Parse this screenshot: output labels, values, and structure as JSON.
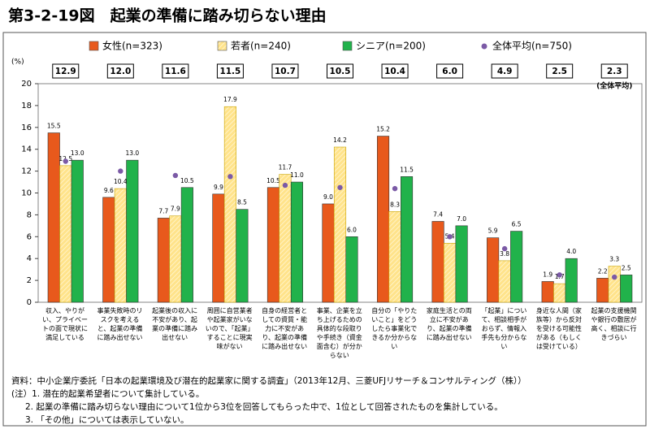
{
  "chart_data": {
    "type": "bar",
    "title": "第3-2-19図　起業の準備に踏み切らない理由",
    "y_unit": "(%)",
    "categories": [
      "収入、やりがい、プライベートの面で現状に満足している",
      "事業失敗時のリスクを考えると、起業の準備に踏み出せない",
      "起業後の収入に不安があり、起業の準備に踏み出せない",
      "周囲に自営業者や起業家がいないので、「起業」することに現実味がない",
      "自身の経営者としての資質・能力に不安があり、起業の準備に踏み出せない",
      "事業、企業を立ち上げるための具体的な段取りや手続き（資金面含む）が分からない",
      "自分の「やりたいこと」をどうしたら事業化できるか分からない",
      "家庭生活との両立に不安があり、起業の準備に踏み出せない",
      "「起業」について、相談相手がおらず、情報入手先も分からない",
      "身近な人間（家族等）から反対を受ける可能性がある（もしくは受けている）",
      "起業の支援機関や銀行の敷居が高く、相談に行きづらい"
    ],
    "series": [
      {
        "name": "女性(n=323)",
        "color": "#e8591c",
        "values": [
          15.5,
          9.6,
          7.7,
          9.9,
          10.5,
          9.0,
          15.2,
          7.4,
          5.9,
          1.9,
          2.2
        ],
        "value_labels": [
          "15.5",
          "9.6",
          "7.7",
          "9.9",
          "10.5",
          "9.0",
          "15.2",
          "7.4",
          "5.9",
          "1.9",
          "2.2"
        ]
      },
      {
        "name": "若者(n=240)",
        "color": "#ffe38a",
        "hatch": true,
        "values": [
          12.5,
          10.4,
          7.9,
          17.9,
          11.7,
          14.2,
          8.3,
          5.4,
          3.8,
          1.7,
          3.3
        ],
        "value_labels": [
          "12.5",
          "10.4",
          "7.9",
          "17.9",
          "11.7",
          "14.2",
          "8.3",
          "5.4",
          "3.8",
          "1.7",
          "3.3"
        ]
      },
      {
        "name": "シニア(n=200)",
        "color": "#21b24b",
        "values": [
          13.0,
          13.0,
          10.5,
          8.5,
          11.0,
          6.0,
          11.5,
          7.0,
          6.5,
          4.0,
          2.5
        ],
        "value_labels": [
          "13.0",
          "13.0",
          "10.5",
          "8.5",
          "11.0",
          "6.0",
          "11.5",
          "7.0",
          "6.5",
          "4.0",
          "2.5"
        ]
      },
      {
        "name": "全体平均(n=750)",
        "color": "#7b5aa6",
        "marker": "dot",
        "values": [
          12.9,
          12.0,
          11.6,
          11.5,
          10.7,
          10.5,
          10.4,
          6.0,
          4.9,
          2.5,
          2.3
        ],
        "value_labels": [
          "12.9",
          "12.0",
          "11.6",
          "11.5",
          "10.7",
          "10.5",
          "10.4",
          "6.0",
          "4.9",
          "2.5",
          "2.3"
        ]
      }
    ],
    "average_note": "(全体平均)",
    "ylim": [
      0,
      20
    ],
    "yticks": [
      0,
      2,
      4,
      6,
      8,
      10,
      12,
      14,
      16,
      18,
      20
    ],
    "grid": false,
    "notes": [
      "資料：中小企業庁委託「日本の起業環境及び潜在的起業家に関する調査」（2013年12月、三菱UFJリサーチ＆コンサルティング（株））",
      "(注）1. 潜在的起業希望者について集計している。",
      "2. 起業の準備に踏み切らない理由について1位から3位を回答してもらった中で、1位として回答されたものを集計している。",
      "3. 「その他」については表示していない。"
    ]
  }
}
